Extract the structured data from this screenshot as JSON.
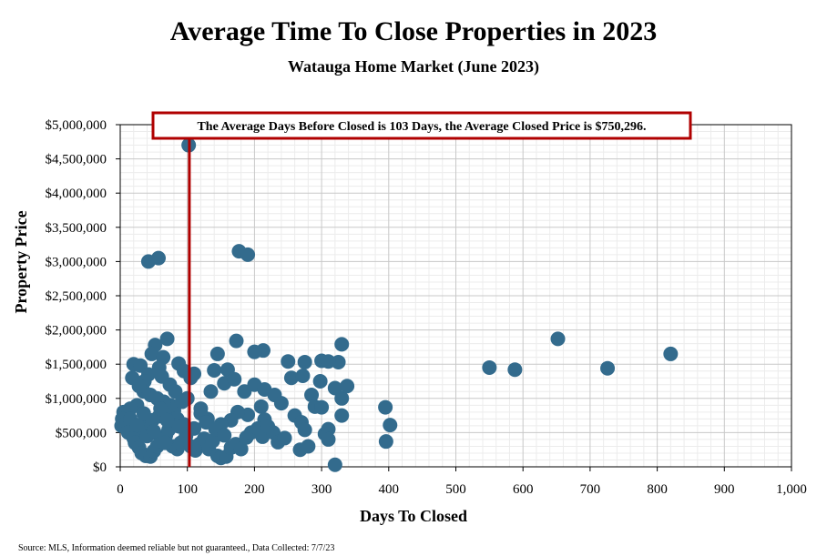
{
  "title": "Average Time To Close Properties in 2023",
  "subtitle": "Watauga Home Market (June 2023)",
  "source": "Source: MLS, Information deemed reliable but not guaranteed., Data Collected: 7/7/23",
  "colors": {
    "points": "#336b8d",
    "avg_line": "#b00000",
    "grid_major": "#c8c8c8",
    "grid_minor": "#ececec"
  },
  "chart_data": {
    "type": "scatter",
    "xlabel": "Days To Closed",
    "ylabel": "Property Price",
    "xlim": [
      0,
      1000
    ],
    "ylim": [
      0,
      5000000
    ],
    "grid": true,
    "x_ticks": [
      "0",
      "100",
      "200",
      "300",
      "400",
      "500",
      "600",
      "700",
      "800",
      "900",
      "1,000"
    ],
    "y_ticks": [
      "$0",
      "$500,000",
      "$1,000,000",
      "$1,500,000",
      "$2,000,000",
      "$2,500,000",
      "$3,000,000",
      "$3,500,000",
      "$4,000,000",
      "$4,500,000",
      "$5,000,000"
    ],
    "annotation": "The Average Days Before Closed is 103 Days, the Average Closed Price is $750,296.",
    "average_days": 103,
    "average_price": 750296,
    "points": [
      [
        102,
        4700000
      ],
      [
        42,
        3000000
      ],
      [
        57,
        3050000
      ],
      [
        177,
        3150000
      ],
      [
        190,
        3100000
      ],
      [
        652,
        1870000
      ],
      [
        820,
        1650000
      ],
      [
        550,
        1450000
      ],
      [
        588,
        1420000
      ],
      [
        726,
        1440000
      ],
      [
        320,
        30000
      ],
      [
        395,
        870000
      ],
      [
        402,
        610000
      ],
      [
        396,
        370000
      ],
      [
        330,
        1790000
      ],
      [
        173,
        1840000
      ],
      [
        213,
        1700000
      ],
      [
        200,
        1680000
      ],
      [
        145,
        1650000
      ],
      [
        70,
        1870000
      ],
      [
        52,
        1780000
      ],
      [
        47,
        1650000
      ],
      [
        64,
        1600000
      ],
      [
        87,
        1510000
      ],
      [
        250,
        1540000
      ],
      [
        275,
        1530000
      ],
      [
        300,
        1550000
      ],
      [
        325,
        1530000
      ],
      [
        310,
        1540000
      ],
      [
        160,
        1420000
      ],
      [
        140,
        1410000
      ],
      [
        110,
        1360000
      ],
      [
        20,
        1500000
      ],
      [
        30,
        1480000
      ],
      [
        18,
        1300000
      ],
      [
        255,
        1300000
      ],
      [
        272,
        1330000
      ],
      [
        298,
        1250000
      ],
      [
        155,
        1220000
      ],
      [
        170,
        1280000
      ],
      [
        200,
        1200000
      ],
      [
        185,
        1100000
      ],
      [
        215,
        1130000
      ],
      [
        230,
        1050000
      ],
      [
        135,
        1100000
      ],
      [
        100,
        1000000
      ],
      [
        285,
        1050000
      ],
      [
        330,
        1000000
      ],
      [
        338,
        1180000
      ],
      [
        320,
        1150000
      ],
      [
        290,
        880000
      ],
      [
        300,
        870000
      ],
      [
        240,
        930000
      ],
      [
        210,
        880000
      ],
      [
        260,
        750000
      ],
      [
        270,
        650000
      ],
      [
        275,
        540000
      ],
      [
        305,
        480000
      ],
      [
        310,
        550000
      ],
      [
        330,
        750000
      ],
      [
        215,
        690000
      ],
      [
        190,
        760000
      ],
      [
        175,
        800000
      ],
      [
        165,
        680000
      ],
      [
        150,
        620000
      ],
      [
        130,
        700000
      ],
      [
        120,
        780000
      ],
      [
        110,
        560000
      ],
      [
        95,
        620000
      ],
      [
        85,
        700000
      ],
      [
        80,
        820000
      ],
      [
        75,
        900000
      ],
      [
        65,
        950000
      ],
      [
        55,
        1000000
      ],
      [
        45,
        1050000
      ],
      [
        35,
        1100000
      ],
      [
        25,
        900000
      ],
      [
        15,
        850000
      ],
      [
        5,
        800000
      ],
      [
        3,
        700000
      ],
      [
        2,
        600000
      ],
      [
        10,
        650000
      ],
      [
        12,
        500000
      ],
      [
        20,
        420000
      ],
      [
        22,
        350000
      ],
      [
        28,
        280000
      ],
      [
        32,
        200000
      ],
      [
        38,
        160000
      ],
      [
        45,
        150000
      ],
      [
        50,
        230000
      ],
      [
        55,
        300000
      ],
      [
        60,
        380000
      ],
      [
        68,
        460000
      ],
      [
        72,
        540000
      ],
      [
        78,
        300000
      ],
      [
        85,
        260000
      ],
      [
        90,
        350000
      ],
      [
        98,
        450000
      ],
      [
        105,
        300000
      ],
      [
        112,
        240000
      ],
      [
        118,
        330000
      ],
      [
        125,
        410000
      ],
      [
        132,
        260000
      ],
      [
        138,
        380000
      ],
      [
        145,
        160000
      ],
      [
        150,
        130000
      ],
      [
        158,
        150000
      ],
      [
        165,
        280000
      ],
      [
        172,
        330000
      ],
      [
        180,
        260000
      ],
      [
        188,
        430000
      ],
      [
        195,
        500000
      ],
      [
        205,
        560000
      ],
      [
        212,
        440000
      ],
      [
        220,
        590000
      ],
      [
        228,
        500000
      ],
      [
        235,
        360000
      ],
      [
        245,
        420000
      ],
      [
        268,
        250000
      ],
      [
        280,
        300000
      ],
      [
        310,
        400000
      ],
      [
        40,
        600000
      ],
      [
        48,
        680000
      ],
      [
        58,
        740000
      ],
      [
        66,
        780000
      ],
      [
        74,
        1200000
      ],
      [
        82,
        1100000
      ],
      [
        92,
        950000
      ],
      [
        42,
        1350000
      ],
      [
        36,
        1250000
      ],
      [
        28,
        1180000
      ],
      [
        58,
        1450000
      ],
      [
        62,
        1320000
      ],
      [
        95,
        1400000
      ],
      [
        105,
        1300000
      ],
      [
        120,
        850000
      ],
      [
        128,
        650000
      ],
      [
        142,
        550000
      ],
      [
        155,
        460000
      ],
      [
        60,
        850000
      ],
      [
        70,
        680000
      ],
      [
        88,
        590000
      ],
      [
        30,
        550000
      ],
      [
        40,
        450000
      ],
      [
        15,
        700000
      ],
      [
        50,
        520000
      ],
      [
        25,
        610000
      ],
      [
        35,
        780000
      ],
      [
        67,
        350000
      ]
    ]
  }
}
